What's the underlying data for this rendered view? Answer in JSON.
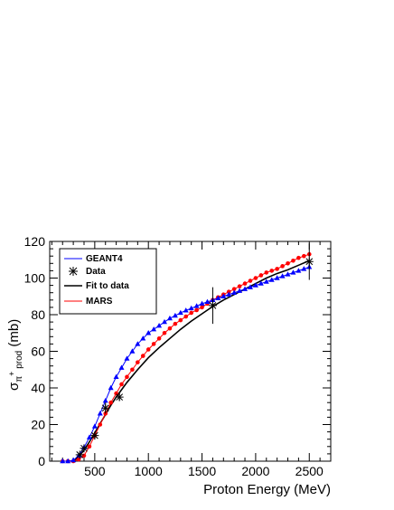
{
  "chart_data": {
    "type": "line",
    "xlabel": "Proton Energy (MeV)",
    "ylabel": {
      "base": "σ",
      "sub_1": "π",
      "sup": "+",
      "sub_2": " prod",
      "tail": " (mb)"
    },
    "xlim": [
      80,
      2700
    ],
    "ylim": [
      0,
      120
    ],
    "x_ticks": [
      500,
      1000,
      1500,
      2000,
      2500
    ],
    "y_ticks": [
      0,
      20,
      40,
      60,
      80,
      100,
      120
    ],
    "grid": false,
    "legend_position": "top-left",
    "series": [
      {
        "name": "GEANT4",
        "style": "line-triangle",
        "color": "#0000ff",
        "x": [
          200,
          250,
          300,
          350,
          400,
          450,
          500,
          550,
          600,
          650,
          700,
          750,
          800,
          850,
          900,
          950,
          1000,
          1050,
          1100,
          1150,
          1200,
          1250,
          1300,
          1350,
          1400,
          1450,
          1500,
          1550,
          1600,
          1650,
          1700,
          1750,
          1800,
          1850,
          1900,
          1950,
          2000,
          2050,
          2100,
          2150,
          2200,
          2250,
          2300,
          2350,
          2400,
          2450,
          2500
        ],
        "y": [
          0,
          0,
          0.5,
          3,
          7.5,
          13,
          19,
          26,
          33,
          40,
          46,
          51,
          56,
          60,
          64,
          67,
          70,
          72,
          74,
          76,
          78,
          79.5,
          81,
          82.3,
          83.5,
          84.7,
          86,
          87,
          88,
          89,
          90,
          91,
          92,
          93,
          94,
          95,
          96,
          97,
          98,
          99,
          100,
          101,
          102,
          103,
          104,
          105,
          106
        ]
      },
      {
        "name": "Data",
        "style": "marker-errorbar",
        "color": "#000000",
        "x": [
          360,
          400,
          500,
          600,
          730,
          1600,
          2500
        ],
        "y": [
          3.5,
          7,
          14,
          29,
          35,
          85,
          109
        ],
        "err": [
          1,
          1.5,
          2,
          3,
          2,
          10,
          10
        ]
      },
      {
        "name": "Fit to data",
        "style": "line",
        "color": "#000000",
        "x": [
          300,
          350,
          400,
          450,
          500,
          550,
          600,
          650,
          700,
          800,
          900,
          1000,
          1100,
          1200,
          1300,
          1400,
          1500,
          1600,
          1700,
          1800,
          1900,
          2000,
          2100,
          2200,
          2300,
          2400,
          2500
        ],
        "y": [
          0,
          2.5,
          6,
          10.5,
          15.5,
          20.5,
          25.5,
          30.5,
          35,
          43,
          50,
          56.5,
          62,
          67,
          72,
          76.5,
          80.5,
          84.5,
          88,
          91,
          94,
          97,
          100,
          102.5,
          104.5,
          107,
          109.5
        ]
      },
      {
        "name": "MARS",
        "style": "line-circle",
        "color": "#ff0000",
        "x": [
          200,
          250,
          300,
          350,
          400,
          450,
          500,
          550,
          600,
          650,
          700,
          750,
          800,
          850,
          900,
          950,
          1000,
          1050,
          1100,
          1150,
          1200,
          1250,
          1300,
          1350,
          1400,
          1450,
          1500,
          1550,
          1600,
          1650,
          1700,
          1750,
          1800,
          1850,
          1900,
          1950,
          2000,
          2050,
          2100,
          2150,
          2200,
          2250,
          2300,
          2350,
          2400,
          2450,
          2500
        ],
        "y": [
          0,
          0,
          0,
          1,
          3,
          8,
          14,
          20,
          26,
          32,
          37,
          42,
          46,
          50,
          54,
          57.5,
          61,
          64,
          67,
          70,
          72.5,
          75,
          77,
          79,
          81,
          82.5,
          84,
          86,
          88,
          89.5,
          91,
          92.5,
          94,
          95.5,
          97,
          98.5,
          100,
          101.5,
          103,
          104,
          105,
          106.5,
          108,
          109.5,
          111,
          112,
          113
        ]
      }
    ]
  }
}
